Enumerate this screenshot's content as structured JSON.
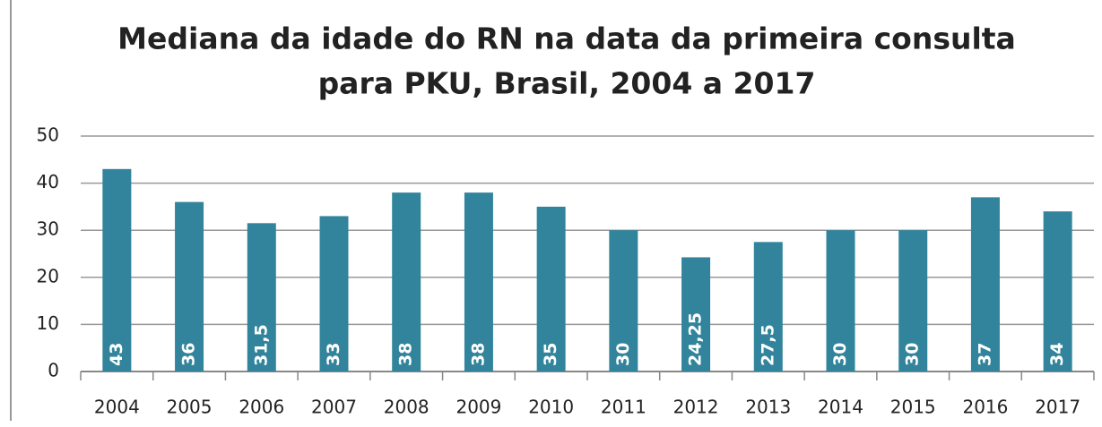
{
  "chart_data": {
    "type": "bar",
    "title": [
      "Mediana da idade do RN na data da primeira consulta",
      "para PKU, Brasil, 2004 a 2017"
    ],
    "categories": [
      "2004",
      "2005",
      "2006",
      "2007",
      "2008",
      "2009",
      "2010",
      "2011",
      "2012",
      "2013",
      "2014",
      "2015",
      "2016",
      "2017"
    ],
    "values": [
      43,
      36,
      31.5,
      33,
      38,
      38,
      35,
      30,
      24.25,
      27.5,
      30,
      30,
      37,
      34
    ],
    "value_labels": [
      "43",
      "36",
      "31,5",
      "33",
      "38",
      "38",
      "35",
      "30",
      "24,25",
      "27,5",
      "30",
      "30",
      "37",
      "34"
    ],
    "color": "#31849b",
    "ylim": [
      0,
      50
    ],
    "yticks": [
      0,
      10,
      20,
      30,
      40,
      50
    ],
    "grid": true
  }
}
